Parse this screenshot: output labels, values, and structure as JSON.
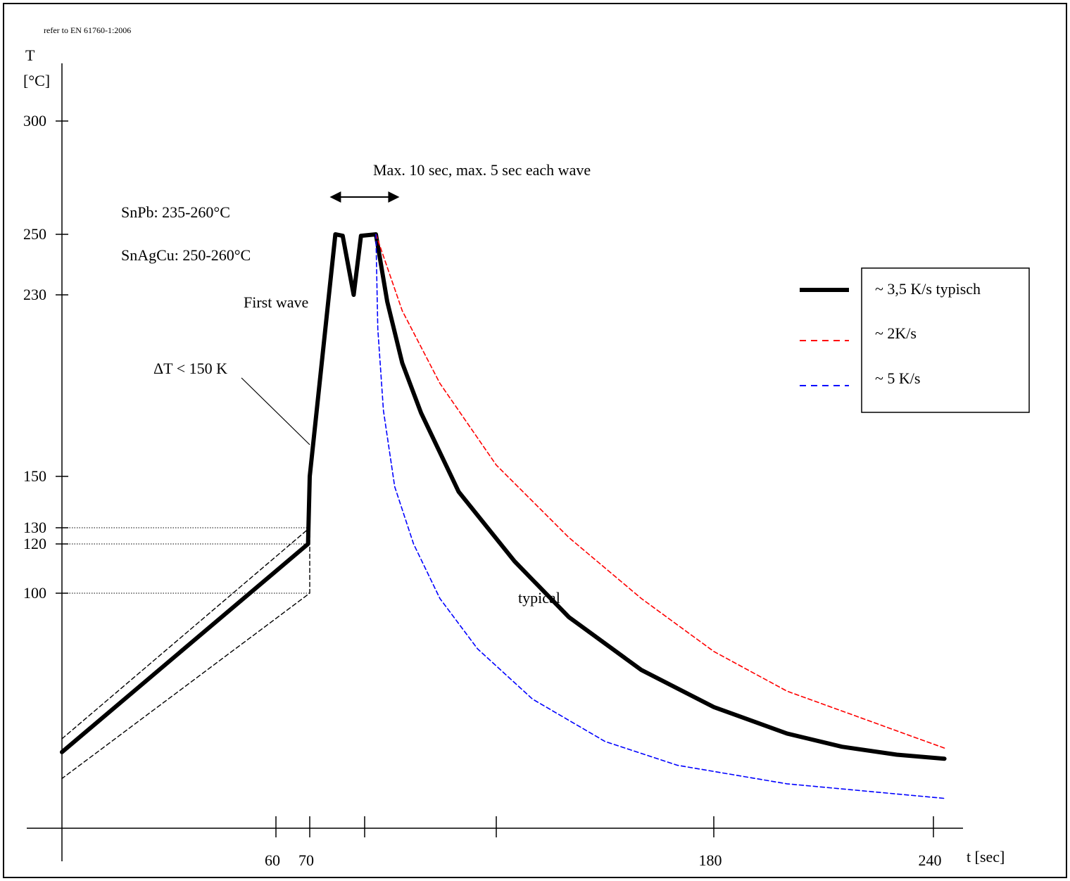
{
  "header": {
    "note": "refer to EN 61760-1:2006"
  },
  "chart_data": {
    "type": "line",
    "title": "",
    "xlabel": "t [sec]",
    "ylabel_line1": "T",
    "ylabel_line2": "[°C]",
    "x_ticks": [
      {
        "value": 60,
        "label": "60"
      },
      {
        "value": 70,
        "label": "70"
      },
      {
        "value": 85,
        "label": ""
      },
      {
        "value": 120,
        "label": ""
      },
      {
        "value": 180,
        "label": "180"
      },
      {
        "value": 240,
        "label": "240"
      }
    ],
    "y_ticks": [
      {
        "value": 100,
        "label": "100"
      },
      {
        "value": 120,
        "label": "120"
      },
      {
        "value": 130,
        "label": "130"
      },
      {
        "value": 150,
        "label": "150"
      },
      {
        "value": 230,
        "label": "230"
      },
      {
        "value": 250,
        "label": "250"
      },
      {
        "value": 300,
        "label": "300"
      }
    ],
    "annotations": {
      "wave_time": "Max. 10 sec, max. 5 sec each wave",
      "snpb": "SnPb: 235-260°C",
      "snagcu": "SnAgCu: 250-260°C",
      "first_wave": "First wave",
      "delta_t": "ΔT < 150 K",
      "typical": "typical"
    },
    "legend": {
      "placement": "right",
      "entries": [
        {
          "label": "~ 3,5 K/s typisch",
          "color": "#000000",
          "style": "solid"
        },
        {
          "label": "~ 2K/s",
          "color": "#ff0000",
          "style": "dashed"
        },
        {
          "label": "~ 5 K/s",
          "color": "#0000ff",
          "style": "dashed"
        }
      ]
    },
    "series": [
      {
        "color": "#000000",
        "style": "solid",
        "points": [
          [
            0,
            40
          ],
          [
            69.5,
            120
          ],
          [
            70,
            150
          ],
          [
            77,
            250
          ],
          [
            79,
            249.5
          ],
          [
            82,
            230
          ],
          [
            84,
            249.5
          ],
          [
            88,
            250
          ],
          [
            91,
            227
          ],
          [
            95,
            200
          ],
          [
            100,
            178
          ],
          [
            110,
            144
          ],
          [
            125,
            113
          ],
          [
            140,
            91
          ],
          [
            160,
            71
          ],
          [
            180,
            57
          ],
          [
            200,
            47
          ],
          [
            215,
            42
          ],
          [
            230,
            39
          ],
          [
            243,
            37.5
          ]
        ]
      },
      {
        "color": "#ff0000",
        "style": "dashed",
        "points": [
          [
            88,
            250
          ],
          [
            95,
            223
          ],
          [
            105,
            191
          ],
          [
            120,
            155
          ],
          [
            140,
            124
          ],
          [
            160,
            98
          ],
          [
            180,
            78
          ],
          [
            200,
            63
          ],
          [
            220,
            53
          ],
          [
            235,
            45.5
          ],
          [
            243,
            41.5
          ]
        ]
      },
      {
        "color": "#0000ff",
        "style": "dashed",
        "points": [
          [
            88,
            250
          ],
          [
            88.5,
            215
          ],
          [
            90,
            179
          ],
          [
            93,
            146
          ],
          [
            98,
            120
          ],
          [
            105,
            98
          ],
          [
            115,
            79
          ],
          [
            130,
            60
          ],
          [
            150,
            44
          ],
          [
            170,
            35
          ],
          [
            200,
            28
          ],
          [
            243,
            22.5
          ]
        ]
      },
      {
        "color": "#000000",
        "style": "dashed-thin",
        "points": [
          [
            0,
            45
          ],
          [
            70,
            130
          ],
          [
            70,
            100
          ],
          [
            0,
            30
          ]
        ]
      }
    ],
    "guides": [
      {
        "from": [
          0,
          130
        ],
        "to": [
          70,
          130
        ]
      },
      {
        "from": [
          0,
          120
        ],
        "to": [
          70,
          120
        ]
      },
      {
        "from": [
          0,
          100
        ],
        "to": [
          70,
          100
        ]
      }
    ],
    "arrow_range": [
      77,
      95
    ]
  }
}
